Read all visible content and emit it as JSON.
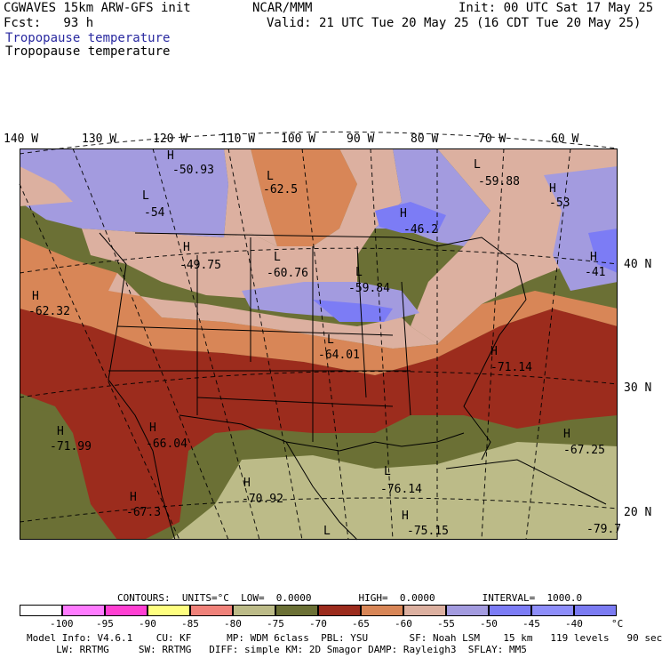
{
  "header": {
    "model": "CGWAVES 15km ARW-GFS init",
    "fcst": "Fcst:   93 h",
    "center": "NCAR/MMM",
    "init": "Init: 00 UTC Sat 17 May 25",
    "valid": "Valid: 21 UTC Tue 20 May 25 (16 CDT Tue 20 May 25)",
    "field1": "Tropopause temperature",
    "field2": "Tropopause temperature"
  },
  "axes": {
    "lon_labels": [
      "140 W",
      "130 W",
      "120 W",
      "110 W",
      "100 W",
      "90 W",
      "80 W",
      "70 W",
      "60 W"
    ],
    "lat_labels": [
      "40 N",
      "30 N",
      "20 N"
    ]
  },
  "map_labels": [
    {
      "letter": "H",
      "value": "-50.93"
    },
    {
      "letter": "L",
      "value": "-62.5"
    },
    {
      "letter": "L",
      "value": "-59.88"
    },
    {
      "letter": "L",
      "value": "-54"
    },
    {
      "letter": "H",
      "value": "-46.2"
    },
    {
      "letter": "H",
      "value": "-53"
    },
    {
      "letter": "H",
      "value": "-49.75"
    },
    {
      "letter": "L",
      "value": "-60.76"
    },
    {
      "letter": "H",
      "value": "-41"
    },
    {
      "letter": "H",
      "value": "-62.32"
    },
    {
      "letter": "L",
      "value": "-59.84"
    },
    {
      "letter": "L",
      "value": "-64.01"
    },
    {
      "letter": "H",
      "value": "-71.14"
    },
    {
      "letter": "H",
      "value": "-71.99"
    },
    {
      "letter": "H",
      "value": "-66.04"
    },
    {
      "letter": "H",
      "value": "-67.25"
    },
    {
      "letter": "H",
      "value": "-70.92"
    },
    {
      "letter": "L",
      "value": "-76.14"
    },
    {
      "letter": "H",
      "value": "-67.3"
    },
    {
      "letter": "H",
      "value": "-75.15"
    },
    {
      "letter": "L",
      "value": ""
    },
    {
      "letter": "",
      "value": "-79.7"
    }
  ],
  "contours_line": "CONTOURS:  UNITS=°C  LOW=  0.0000        HIGH=  0.0000        INTERVAL=  1000.0",
  "colorbar": {
    "colors": [
      "#ffffff",
      "#ff7bff",
      "#ff3fd2",
      "#ffff80",
      "#f0827a",
      "#bcbb88",
      "#6b7035",
      "#9c2c1d",
      "#d88657",
      "#dcb0a0",
      "#a39bdf",
      "#7c7cf5",
      "#8e8efa",
      "#7b7bf2"
    ],
    "labels": [
      "-100",
      "-95",
      "-90",
      "-85",
      "-80",
      "-75",
      "-70",
      "-65",
      "-60",
      "-55",
      "-50",
      "-45",
      "-40"
    ],
    "unit": "°C"
  },
  "footer": {
    "line1": "Model Info: V4.6.1    CU: KF      MP: WDM 6class  PBL: YSU       SF: Noah LSM    15 km   119 levels   90 sec",
    "line2": "     LW: RRTMG     SW: RRTMG   DIFF: simple KM: 2D Smagor DAMP: Rayleigh3  SFLAY: MM5"
  }
}
